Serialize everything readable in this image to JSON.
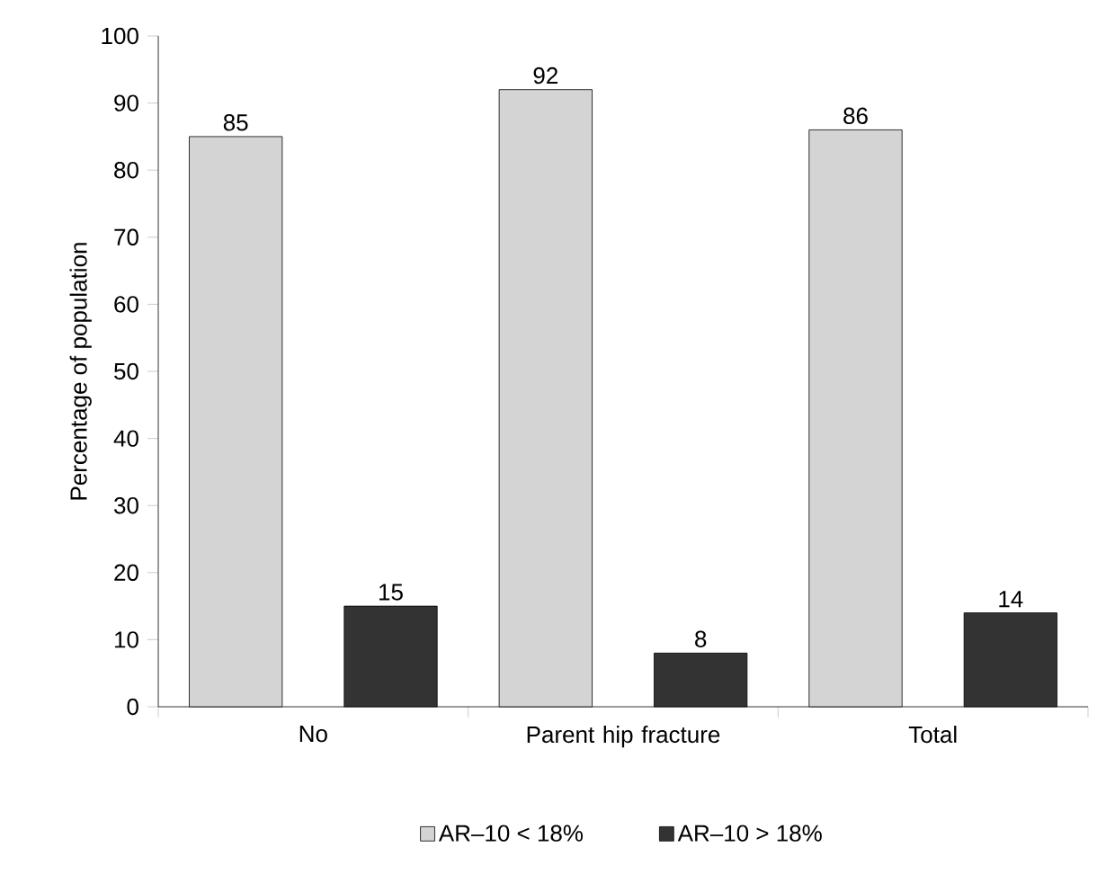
{
  "chart_data": {
    "type": "bar",
    "ylabel": "Percentage of population",
    "categories": [
      "No",
      "Parent hip fracture",
      "Total"
    ],
    "series": [
      {
        "name": "AR–10 < 18%",
        "color": "#d4d4d4",
        "values": [
          85,
          92,
          86
        ]
      },
      {
        "name": "AR–10 > 18%",
        "color": "#333333",
        "values": [
          15,
          8,
          14
        ]
      }
    ],
    "ylim": [
      0,
      100
    ],
    "yticks": [
      0,
      10,
      20,
      30,
      40,
      50,
      60,
      70,
      80,
      90,
      100
    ],
    "data_labels": true,
    "legend": "bottom"
  }
}
